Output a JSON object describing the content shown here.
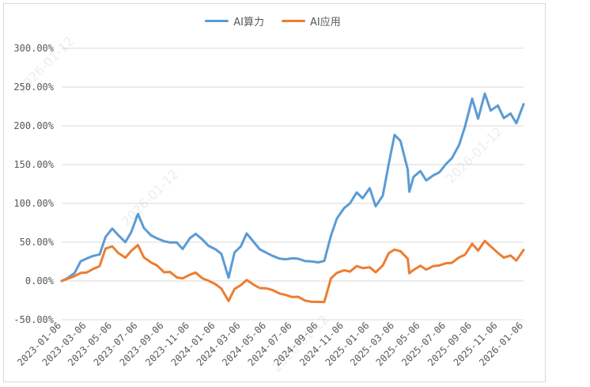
{
  "chart_data": {
    "type": "line",
    "title": "",
    "xlabel": "",
    "ylabel": "",
    "legend_position": "top-center",
    "grid": true,
    "ylim": [
      -50,
      300
    ],
    "y_ticks": [
      "300.00%",
      "250.00%",
      "200.00%",
      "150.00%",
      "100.00%",
      "50.00%",
      "0.00%",
      "-50.00%"
    ],
    "y_tick_values": [
      300,
      250,
      200,
      150,
      100,
      50,
      0,
      -50
    ],
    "x_ticks": [
      "2023-01-06",
      "2023-03-06",
      "2023-05-06",
      "2023-07-06",
      "2023-09-06",
      "2023-11-06",
      "2024-01-06",
      "2024-03-06",
      "2024-05-06",
      "2024-07-06",
      "2024-09-06",
      "2024-11-06",
      "2025-01-06",
      "2025-03-06",
      "2025-05-06",
      "2025-07-06",
      "2025-09-06",
      "2025-11-06",
      "2026-01-06"
    ],
    "x_range": [
      "2023-01-06",
      "2026-01-06"
    ],
    "watermark_text": "2026-01-12",
    "series": [
      {
        "name": "AI算力",
        "color": "#5b9bd5",
        "points": [
          [
            "2023-01-06",
            0
          ],
          [
            "2023-01-20",
            3
          ],
          [
            "2023-02-06",
            12
          ],
          [
            "2023-02-20",
            25
          ],
          [
            "2023-03-06",
            30
          ],
          [
            "2023-03-20",
            32
          ],
          [
            "2023-04-06",
            35
          ],
          [
            "2023-04-20",
            55
          ],
          [
            "2023-05-06",
            68
          ],
          [
            "2023-05-20",
            58
          ],
          [
            "2023-06-06",
            50
          ],
          [
            "2023-06-20",
            62
          ],
          [
            "2023-07-06",
            88
          ],
          [
            "2023-07-20",
            68
          ],
          [
            "2023-08-06",
            60
          ],
          [
            "2023-08-20",
            55
          ],
          [
            "2023-09-06",
            52
          ],
          [
            "2023-09-20",
            48
          ],
          [
            "2023-10-06",
            50
          ],
          [
            "2023-10-20",
            40
          ],
          [
            "2023-11-06",
            55
          ],
          [
            "2023-11-20",
            60
          ],
          [
            "2023-12-06",
            55
          ],
          [
            "2023-12-20",
            45
          ],
          [
            "2024-01-06",
            42
          ],
          [
            "2024-01-20",
            35
          ],
          [
            "2024-02-06",
            5
          ],
          [
            "2024-02-20",
            35
          ],
          [
            "2024-03-06",
            45
          ],
          [
            "2024-03-20",
            60
          ],
          [
            "2024-04-06",
            50
          ],
          [
            "2024-04-20",
            40
          ],
          [
            "2024-05-06",
            38
          ],
          [
            "2024-05-20",
            32
          ],
          [
            "2024-06-06",
            30
          ],
          [
            "2024-06-20",
            28
          ],
          [
            "2024-07-06",
            30
          ],
          [
            "2024-07-20",
            27
          ],
          [
            "2024-08-06",
            26
          ],
          [
            "2024-08-20",
            24
          ],
          [
            "2024-09-06",
            24
          ],
          [
            "2024-09-20",
            25
          ],
          [
            "2024-10-06",
            60
          ],
          [
            "2024-10-20",
            80
          ],
          [
            "2024-11-06",
            95
          ],
          [
            "2024-11-20",
            100
          ],
          [
            "2024-12-06",
            115
          ],
          [
            "2024-12-20",
            105
          ],
          [
            "2025-01-06",
            120
          ],
          [
            "2025-01-20",
            95
          ],
          [
            "2025-02-06",
            110
          ],
          [
            "2025-02-20",
            150
          ],
          [
            "2025-03-06",
            190
          ],
          [
            "2025-03-20",
            180
          ],
          [
            "2025-04-06",
            145
          ],
          [
            "2025-04-10",
            115
          ],
          [
            "2025-04-20",
            135
          ],
          [
            "2025-05-06",
            140
          ],
          [
            "2025-05-20",
            130
          ],
          [
            "2025-06-06",
            135
          ],
          [
            "2025-06-20",
            140
          ],
          [
            "2025-07-06",
            150
          ],
          [
            "2025-07-20",
            160
          ],
          [
            "2025-08-06",
            175
          ],
          [
            "2025-08-20",
            200
          ],
          [
            "2025-09-06",
            235
          ],
          [
            "2025-09-20",
            210
          ],
          [
            "2025-10-06",
            240
          ],
          [
            "2025-10-20",
            220
          ],
          [
            "2025-11-06",
            225
          ],
          [
            "2025-11-20",
            210
          ],
          [
            "2025-12-06",
            215
          ],
          [
            "2025-12-20",
            205
          ],
          [
            "2026-01-06",
            228
          ]
        ]
      },
      {
        "name": "AI应用",
        "color": "#ed7d31",
        "points": [
          [
            "2023-01-06",
            0
          ],
          [
            "2023-01-20",
            2
          ],
          [
            "2023-02-06",
            8
          ],
          [
            "2023-02-20",
            10
          ],
          [
            "2023-03-06",
            12
          ],
          [
            "2023-03-20",
            15
          ],
          [
            "2023-04-06",
            20
          ],
          [
            "2023-04-20",
            40
          ],
          [
            "2023-05-06",
            45
          ],
          [
            "2023-05-20",
            35
          ],
          [
            "2023-06-06",
            30
          ],
          [
            "2023-06-20",
            38
          ],
          [
            "2023-07-06",
            48
          ],
          [
            "2023-07-20",
            30
          ],
          [
            "2023-08-06",
            25
          ],
          [
            "2023-08-20",
            20
          ],
          [
            "2023-09-06",
            12
          ],
          [
            "2023-09-20",
            10
          ],
          [
            "2023-10-06",
            5
          ],
          [
            "2023-10-20",
            2
          ],
          [
            "2023-11-06",
            8
          ],
          [
            "2023-11-20",
            10
          ],
          [
            "2023-12-06",
            5
          ],
          [
            "2023-12-20",
            0
          ],
          [
            "2024-01-06",
            -3
          ],
          [
            "2024-01-20",
            -10
          ],
          [
            "2024-02-06",
            -25
          ],
          [
            "2024-02-20",
            -12
          ],
          [
            "2024-03-06",
            -5
          ],
          [
            "2024-03-20",
            0
          ],
          [
            "2024-04-06",
            -5
          ],
          [
            "2024-04-20",
            -10
          ],
          [
            "2024-05-06",
            -8
          ],
          [
            "2024-05-20",
            -12
          ],
          [
            "2024-06-06",
            -15
          ],
          [
            "2024-06-20",
            -18
          ],
          [
            "2024-07-06",
            -20
          ],
          [
            "2024-07-20",
            -22
          ],
          [
            "2024-08-06",
            -25
          ],
          [
            "2024-08-20",
            -28
          ],
          [
            "2024-09-06",
            -27
          ],
          [
            "2024-09-20",
            -28
          ],
          [
            "2024-10-06",
            5
          ],
          [
            "2024-10-20",
            10
          ],
          [
            "2024-11-06",
            15
          ],
          [
            "2024-11-20",
            12
          ],
          [
            "2024-12-06",
            20
          ],
          [
            "2024-12-20",
            15
          ],
          [
            "2025-01-06",
            18
          ],
          [
            "2025-01-20",
            10
          ],
          [
            "2025-02-06",
            20
          ],
          [
            "2025-02-20",
            35
          ],
          [
            "2025-03-06",
            42
          ],
          [
            "2025-03-20",
            38
          ],
          [
            "2025-04-06",
            30
          ],
          [
            "2025-04-10",
            10
          ],
          [
            "2025-04-20",
            15
          ],
          [
            "2025-05-06",
            18
          ],
          [
            "2025-05-20",
            15
          ],
          [
            "2025-06-06",
            18
          ],
          [
            "2025-06-20",
            20
          ],
          [
            "2025-07-06",
            22
          ],
          [
            "2025-07-20",
            25
          ],
          [
            "2025-08-06",
            30
          ],
          [
            "2025-08-20",
            35
          ],
          [
            "2025-09-06",
            48
          ],
          [
            "2025-09-20",
            40
          ],
          [
            "2025-10-06",
            50
          ],
          [
            "2025-10-20",
            45
          ],
          [
            "2025-11-06",
            35
          ],
          [
            "2025-11-20",
            30
          ],
          [
            "2025-12-06",
            32
          ],
          [
            "2025-12-20",
            28
          ],
          [
            "2026-01-06",
            40
          ]
        ]
      }
    ]
  }
}
